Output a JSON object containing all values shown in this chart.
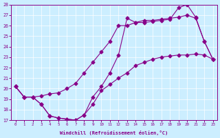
{
  "xlabel": "Windchill (Refroidissement éolien,°C)",
  "xlim": [
    -0.5,
    23.5
  ],
  "ylim": [
    17,
    28
  ],
  "yticks": [
    17,
    18,
    19,
    20,
    21,
    22,
    23,
    24,
    25,
    26,
    27,
    28
  ],
  "xticks": [
    0,
    1,
    2,
    3,
    4,
    5,
    6,
    7,
    8,
    9,
    10,
    11,
    12,
    13,
    14,
    15,
    16,
    17,
    18,
    19,
    20,
    21,
    22,
    23
  ],
  "bg_color": "#cceeff",
  "line_color": "#880088",
  "line1_x": [
    0,
    1,
    2,
    3,
    4,
    5,
    6,
    7,
    8,
    9,
    10,
    11,
    12,
    13,
    14,
    15,
    16,
    17,
    18,
    19,
    20,
    21,
    22,
    23
  ],
  "line1_y": [
    20.2,
    19.2,
    19.2,
    18.5,
    17.4,
    17.2,
    17.1,
    17.0,
    17.5,
    18.5,
    19.8,
    20.4,
    21.0,
    21.5,
    22.2,
    22.5,
    22.8,
    23.0,
    23.1,
    23.2,
    23.2,
    23.3,
    23.2,
    22.8
  ],
  "line2_x": [
    0,
    1,
    2,
    3,
    4,
    5,
    6,
    7,
    8,
    9,
    10,
    11,
    12,
    13,
    14,
    15,
    16,
    17,
    18,
    19,
    20,
    21,
    22,
    23
  ],
  "line2_y": [
    20.2,
    19.2,
    19.2,
    19.3,
    19.5,
    19.6,
    20.0,
    20.5,
    21.5,
    22.5,
    23.5,
    24.5,
    26.0,
    26.0,
    26.3,
    26.5,
    26.5,
    26.6,
    26.7,
    26.8,
    27.0,
    26.7,
    24.5,
    22.8
  ],
  "line3_x": [
    0,
    1,
    2,
    3,
    4,
    5,
    6,
    7,
    8,
    9,
    10,
    11,
    12,
    13,
    14,
    15,
    16,
    17,
    18,
    19,
    20,
    21,
    22,
    23
  ],
  "line3_y": [
    20.2,
    19.2,
    19.2,
    18.5,
    17.4,
    17.2,
    17.1,
    17.0,
    17.5,
    19.2,
    20.2,
    21.5,
    23.2,
    26.7,
    26.3,
    26.3,
    26.4,
    26.5,
    26.6,
    27.7,
    28.0,
    26.8,
    24.5,
    22.8
  ]
}
